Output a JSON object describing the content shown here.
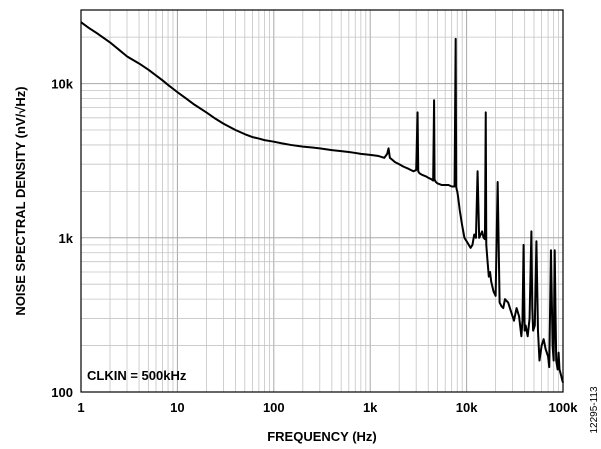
{
  "chart_data": {
    "type": "line",
    "title": "",
    "xlabel": "FREQUENCY (Hz)",
    "ylabel": "NOISE SPECTRAL DENSITY (nV/√Hz)",
    "x_scale": "log",
    "y_scale": "log",
    "xlim": [
      1,
      100000
    ],
    "ylim": [
      100,
      30000
    ],
    "grid": true,
    "x_ticks": [
      1,
      10,
      100,
      1000,
      10000,
      100000
    ],
    "x_tick_labels": [
      "1",
      "10",
      "100",
      "1k",
      "10k",
      "100k"
    ],
    "y_ticks": [
      100,
      1000,
      10000
    ],
    "y_tick_labels": [
      "100",
      "1k",
      "10k"
    ],
    "annotation": "CLKIN = 500kHz",
    "figure_id": "12295-113",
    "series_color": "#000000",
    "series": [
      {
        "x": [
          1,
          1.2,
          1.5,
          2,
          2.5,
          3,
          4,
          5,
          6,
          7,
          8,
          10,
          12,
          15,
          20,
          25,
          30,
          40,
          50,
          60,
          70,
          80,
          100,
          120,
          150,
          200,
          250,
          300,
          400,
          500,
          600,
          700,
          800,
          1000,
          1200,
          1400,
          1500,
          1550,
          1600,
          1700,
          1800,
          2000,
          2200,
          2500,
          2800,
          3000,
          3100,
          3150,
          3200,
          3300,
          3500,
          3800,
          4000,
          4300,
          4500,
          4600,
          4650,
          4700,
          4800,
          5000,
          5500,
          6000,
          6500,
          7000,
          7500,
          7700,
          7800,
          7850,
          7900,
          8000,
          8100,
          8200,
          8500,
          9000,
          9500,
          10000,
          11000,
          11500,
          12000,
          12500,
          13000,
          13500,
          14000,
          14500,
          15000,
          15500,
          15800,
          16000,
          16500,
          17000,
          17500,
          18000,
          19000,
          20000,
          21000,
          22000,
          23000,
          24000,
          25000,
          27000,
          29000,
          31000,
          33000,
          35000,
          37000,
          38000,
          39000,
          40000,
          41000,
          43000,
          45000,
          47000,
          48000,
          49000,
          51000,
          53000,
          55000,
          57000,
          60000,
          63000,
          66000,
          70000,
          72000,
          75000,
          78000,
          80000,
          82000,
          85000,
          88000,
          90000,
          92000,
          95000,
          98000,
          100000
        ],
        "y": [
          25000,
          23000,
          21000,
          18500,
          16500,
          15000,
          13500,
          12300,
          11300,
          10500,
          9800,
          8800,
          8100,
          7300,
          6500,
          5900,
          5500,
          5000,
          4700,
          4500,
          4400,
          4300,
          4200,
          4100,
          4000,
          3900,
          3850,
          3800,
          3700,
          3650,
          3600,
          3550,
          3500,
          3450,
          3400,
          3300,
          3500,
          3800,
          3300,
          3200,
          3100,
          3000,
          2900,
          2800,
          2700,
          2750,
          6500,
          2700,
          2650,
          2600,
          2550,
          2500,
          2450,
          2400,
          2350,
          7800,
          2400,
          2350,
          2300,
          2250,
          2200,
          2200,
          2200,
          2150,
          2150,
          19500,
          2150,
          2100,
          2050,
          2000,
          1900,
          1800,
          1500,
          1200,
          1000,
          950,
          860,
          900,
          1050,
          1000,
          2700,
          1000,
          1050,
          1100,
          1000,
          980,
          6500,
          900,
          700,
          560,
          600,
          520,
          450,
          420,
          2300,
          380,
          360,
          350,
          400,
          380,
          330,
          290,
          350,
          310,
          230,
          290,
          900,
          250,
          270,
          230,
          300,
          1100,
          350,
          250,
          270,
          950,
          250,
          160,
          200,
          220,
          190,
          170,
          145,
          830,
          200,
          160,
          830,
          160,
          140,
          180,
          140,
          130,
          120,
          115
        ]
      }
    ]
  }
}
